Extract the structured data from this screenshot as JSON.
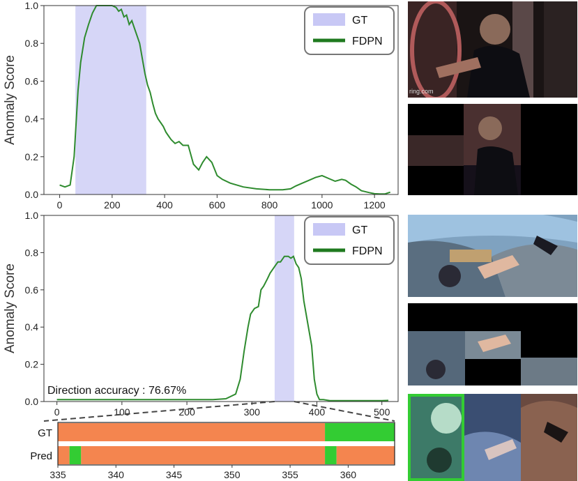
{
  "chart_data": [
    {
      "type": "line",
      "ylabel": "Anomaly Score",
      "xlim": [
        -60,
        1290
      ],
      "ylim": [
        0,
        1.0
      ],
      "xticks": [
        0,
        200,
        400,
        600,
        800,
        1000,
        1200
      ],
      "yticks": [
        0.0,
        0.2,
        0.4,
        0.6,
        0.8,
        1.0
      ],
      "legend_position": "top-right",
      "legend": [
        {
          "label": "GT",
          "color": "#c8c8f5",
          "kind": "patch"
        },
        {
          "label": "FDPN",
          "color": "#1f7a1f",
          "kind": "line"
        }
      ],
      "gt_region": [
        60,
        330
      ],
      "series": [
        {
          "name": "FDPN",
          "color": "#2e8b2e",
          "x": [
            0,
            20,
            40,
            55,
            70,
            80,
            95,
            110,
            125,
            140,
            160,
            180,
            200,
            215,
            225,
            235,
            245,
            255,
            265,
            275,
            285,
            295,
            305,
            315,
            325,
            335,
            345,
            355,
            365,
            375,
            385,
            395,
            405,
            415,
            425,
            440,
            455,
            470,
            490,
            510,
            530,
            545,
            560,
            580,
            600,
            620,
            650,
            700,
            750,
            800,
            850,
            880,
            900,
            925,
            950,
            975,
            1000,
            1025,
            1050,
            1075,
            1090,
            1110,
            1130,
            1150,
            1180,
            1200,
            1220,
            1240,
            1260
          ],
          "y": [
            0.05,
            0.04,
            0.05,
            0.2,
            0.55,
            0.7,
            0.83,
            0.9,
            0.96,
            1.0,
            1.0,
            1.0,
            1.0,
            0.99,
            0.97,
            0.98,
            0.94,
            0.95,
            0.9,
            0.92,
            0.88,
            0.84,
            0.8,
            0.72,
            0.64,
            0.58,
            0.54,
            0.48,
            0.43,
            0.4,
            0.38,
            0.36,
            0.33,
            0.31,
            0.29,
            0.27,
            0.28,
            0.26,
            0.26,
            0.16,
            0.13,
            0.17,
            0.2,
            0.17,
            0.1,
            0.08,
            0.06,
            0.04,
            0.03,
            0.025,
            0.025,
            0.03,
            0.045,
            0.06,
            0.075,
            0.09,
            0.1,
            0.085,
            0.07,
            0.08,
            0.075,
            0.055,
            0.04,
            0.02,
            0.01,
            0.004,
            0.003,
            0.003,
            0.012
          ]
        }
      ]
    },
    {
      "type": "line",
      "ylabel": "Anomaly Score",
      "xlim": [
        -20,
        525
      ],
      "ylim": [
        0,
        1.0
      ],
      "xticks": [
        0,
        100,
        200,
        300,
        400,
        500
      ],
      "yticks": [
        0.0,
        0.2,
        0.4,
        0.6,
        0.8,
        1.0
      ],
      "legend_position": "top-right",
      "legend": [
        {
          "label": "GT",
          "color": "#c8c8f5",
          "kind": "patch"
        },
        {
          "label": "FDPN",
          "color": "#1f7a1f",
          "kind": "line"
        }
      ],
      "gt_region": [
        335,
        365
      ],
      "annotation": "Direction accuracy : 76.67%",
      "series": [
        {
          "name": "FDPN",
          "color": "#2e8b2e",
          "x": [
            0,
            100,
            200,
            240,
            260,
            275,
            282,
            288,
            294,
            298,
            304,
            310,
            314,
            318,
            324,
            328,
            332,
            336,
            340,
            344,
            350,
            356,
            360,
            364,
            368,
            372,
            376,
            380,
            386,
            392,
            396,
            400,
            404,
            410,
            420,
            440,
            470,
            500,
            510
          ],
          "y": [
            0.01,
            0.01,
            0.01,
            0.01,
            0.015,
            0.04,
            0.12,
            0.27,
            0.4,
            0.47,
            0.5,
            0.51,
            0.6,
            0.62,
            0.66,
            0.69,
            0.71,
            0.73,
            0.75,
            0.75,
            0.78,
            0.78,
            0.77,
            0.78,
            0.74,
            0.72,
            0.66,
            0.54,
            0.42,
            0.3,
            0.12,
            0.04,
            0.01,
            0.01,
            0.005,
            0.005,
            0.005,
            0.005,
            0.006
          ]
        }
      ]
    },
    {
      "type": "heatmap",
      "rows": [
        "GT",
        "Pred"
      ],
      "xlim": [
        335,
        364
      ],
      "xticks": [
        335,
        340,
        345,
        350,
        355,
        360
      ],
      "colors": {
        "negative": "#f4854f",
        "positive": "#33cc33"
      },
      "segments": {
        "GT": [
          {
            "from": 335,
            "to": 358,
            "value": 0
          },
          {
            "from": 358,
            "to": 364,
            "value": 1
          }
        ],
        "Pred": [
          {
            "from": 335,
            "to": 336,
            "value": 0
          },
          {
            "from": 336,
            "to": 337,
            "value": 1
          },
          {
            "from": 337,
            "to": 358,
            "value": 0
          },
          {
            "from": 358,
            "to": 359,
            "value": 1
          },
          {
            "from": 359,
            "to": 364,
            "value": 0
          }
        ]
      }
    }
  ],
  "thumbnails": {
    "watermark": "ring.com"
  }
}
